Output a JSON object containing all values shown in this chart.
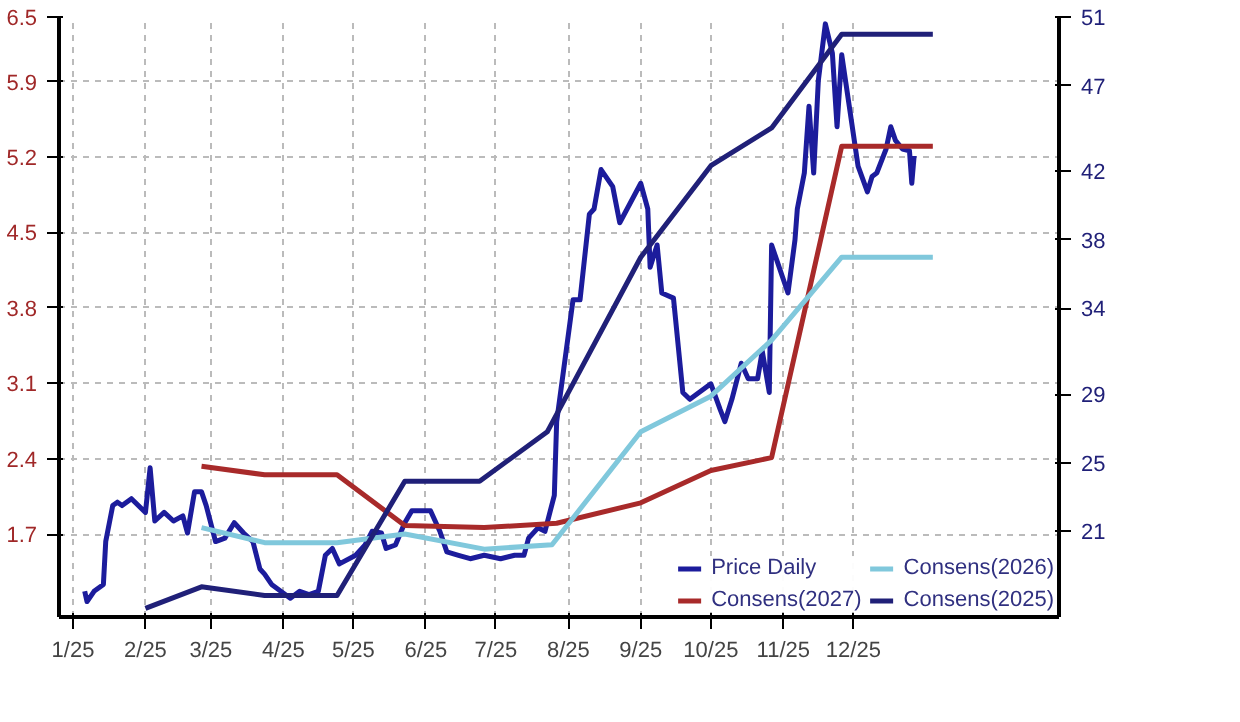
{
  "chart_data": {
    "type": "line",
    "grid": true,
    "legend": "bottom right",
    "line_style": "solid",
    "xlim": [
      "2024-12-26",
      "2026-02-27"
    ],
    "xticks": [
      {
        "value": "2025-01",
        "label": "1/25"
      },
      {
        "value": "2025-02",
        "label": "2/25"
      },
      {
        "value": "2025-03",
        "label": "3/25"
      },
      {
        "value": "2025-04",
        "label": "4/25"
      },
      {
        "value": "2025-05",
        "label": "5/25"
      },
      {
        "value": "2025-06",
        "label": "6/25"
      },
      {
        "value": "2025-07",
        "label": "7/25"
      },
      {
        "value": "2025-08",
        "label": "8/25"
      },
      {
        "value": "2025-09",
        "label": "9/25"
      },
      {
        "value": "2025-10",
        "label": "10/25"
      },
      {
        "value": "2025-11",
        "label": "11/25"
      },
      {
        "value": "2025-12",
        "label": "12/25"
      }
    ],
    "ylim": [
      0.93,
      6.5
    ],
    "yticks": [
      1.7,
      2.4,
      3.1,
      3.8,
      4.5,
      5.2,
      5.9,
      6.5
    ],
    "y2lim": [
      16.0,
      51
    ],
    "y2ticks": [
      21,
      25,
      29,
      34,
      38,
      42,
      47,
      51
    ],
    "series": [
      {
        "name": "Price Daily",
        "color": "#1c1c9c",
        "axis": "y2",
        "x": [
          "2025-01-06",
          "2025-01-07",
          "2025-01-10",
          "2025-01-14",
          "2025-01-15",
          "2025-01-18",
          "2025-01-20",
          "2025-01-22",
          "2025-01-26",
          "2025-02-01",
          "2025-02-03",
          "2025-02-05",
          "2025-02-09",
          "2025-02-13",
          "2025-02-17",
          "2025-02-19",
          "2025-02-22",
          "2025-02-25",
          "2025-02-27",
          "2025-03-03",
          "2025-03-07",
          "2025-03-11",
          "2025-03-15",
          "2025-03-19",
          "2025-03-22",
          "2025-03-24",
          "2025-03-27",
          "2025-04-04",
          "2025-04-08",
          "2025-04-12",
          "2025-04-16",
          "2025-04-19",
          "2025-04-22",
          "2025-04-25",
          "2025-05-02",
          "2025-05-06",
          "2025-05-09",
          "2025-05-13",
          "2025-05-15",
          "2025-05-19",
          "2025-05-23",
          "2025-05-26",
          "2025-06-03",
          "2025-06-07",
          "2025-06-10",
          "2025-06-15",
          "2025-06-20",
          "2025-06-26",
          "2025-07-03",
          "2025-07-09",
          "2025-07-13",
          "2025-07-15",
          "2025-07-19",
          "2025-07-22",
          "2025-07-26",
          "2025-07-27",
          "2025-08-03",
          "2025-08-06",
          "2025-08-10",
          "2025-08-12",
          "2025-08-15",
          "2025-08-18",
          "2025-08-20",
          "2025-08-23",
          "2025-09-01",
          "2025-09-04",
          "2025-09-05",
          "2025-09-08",
          "2025-09-10",
          "2025-09-15",
          "2025-09-19",
          "2025-09-22",
          "2025-10-01",
          "2025-10-05",
          "2025-10-07",
          "2025-10-10",
          "2025-10-14",
          "2025-10-17",
          "2025-10-21",
          "2025-10-23",
          "2025-10-26",
          "2025-10-27",
          "2025-11-03",
          "2025-11-06",
          "2025-11-07",
          "2025-11-10",
          "2025-11-12",
          "2025-11-14",
          "2025-11-16",
          "2025-11-19",
          "2025-11-22",
          "2025-11-24",
          "2025-11-26",
          "2025-12-03",
          "2025-12-07",
          "2025-12-09",
          "2025-12-11",
          "2025-12-15",
          "2025-12-17",
          "2025-12-19",
          "2025-12-22",
          "2025-12-25",
          "2025-12-26",
          "2025-12-27"
        ],
        "values": [
          17.5,
          16.9,
          17.5,
          17.9,
          20.4,
          22.5,
          22.7,
          22.5,
          22.9,
          22.1,
          24.7,
          21.6,
          22.1,
          21.6,
          21.9,
          20.9,
          23.3,
          23.3,
          22.5,
          20.4,
          20.6,
          21.5,
          20.9,
          20.4,
          18.8,
          18.5,
          17.9,
          17.1,
          17.5,
          17.3,
          17.5,
          19.6,
          20.0,
          19.1,
          19.6,
          20.2,
          21.0,
          20.9,
          20.0,
          20.2,
          21.5,
          22.2,
          22.2,
          21.0,
          19.8,
          19.6,
          19.4,
          19.6,
          19.4,
          19.6,
          19.6,
          20.6,
          21.2,
          21.0,
          23.1,
          27.4,
          34.5,
          34.5,
          39.5,
          39.8,
          42.1,
          41.5,
          41.1,
          39.0,
          41.3,
          39.8,
          36.4,
          37.7,
          34.9,
          34.6,
          29.1,
          28.7,
          29.6,
          28.1,
          27.4,
          28.7,
          30.8,
          29.9,
          29.9,
          31.5,
          29.1,
          37.7,
          34.9,
          38.0,
          39.8,
          41.9,
          45.8,
          41.9,
          47.3,
          50.6,
          48.9,
          44.6,
          48.8,
          42.3,
          40.8,
          41.7,
          41.9,
          43.3,
          44.6,
          43.8,
          43.3,
          43.2,
          41.3,
          42.9
        ]
      },
      {
        "name": "Consens(2027)",
        "color": "#a82a2a",
        "x": [
          "2025-02-25",
          "2025-03-24",
          "2025-04-24",
          "2025-05-23",
          "2025-06-26",
          "2025-07-27",
          "2025-09-01",
          "2025-10-01",
          "2025-10-27",
          "2025-11-26",
          "2026-01-04"
        ],
        "values": [
          2.33,
          2.25,
          2.25,
          1.78,
          1.76,
          1.8,
          1.99,
          2.29,
          2.41,
          5.3,
          5.3
        ]
      },
      {
        "name": "Consens(2026)",
        "color": "#80c8dc",
        "x": [
          "2025-02-25",
          "2025-03-24",
          "2025-04-24",
          "2025-05-23",
          "2025-06-26",
          "2025-07-25",
          "2025-09-01",
          "2025-10-01",
          "2025-10-27",
          "2025-11-26",
          "2026-01-04"
        ],
        "values": [
          1.76,
          1.62,
          1.62,
          1.7,
          1.56,
          1.6,
          2.65,
          2.98,
          3.5,
          4.27,
          4.27
        ]
      },
      {
        "name": "Consens(2025)",
        "color": "#202078",
        "x": [
          "2025-02-01",
          "2025-02-25",
          "2025-03-24",
          "2025-04-24",
          "2025-05-23",
          "2025-06-24",
          "2025-07-23",
          "2025-07-24",
          "2025-09-01",
          "2025-10-01",
          "2025-10-27",
          "2025-11-26",
          "2026-01-04"
        ],
        "values": [
          1.01,
          1.21,
          1.13,
          1.13,
          2.19,
          2.19,
          2.65,
          2.69,
          4.27,
          5.12,
          5.47,
          6.34,
          6.34
        ]
      }
    ]
  }
}
